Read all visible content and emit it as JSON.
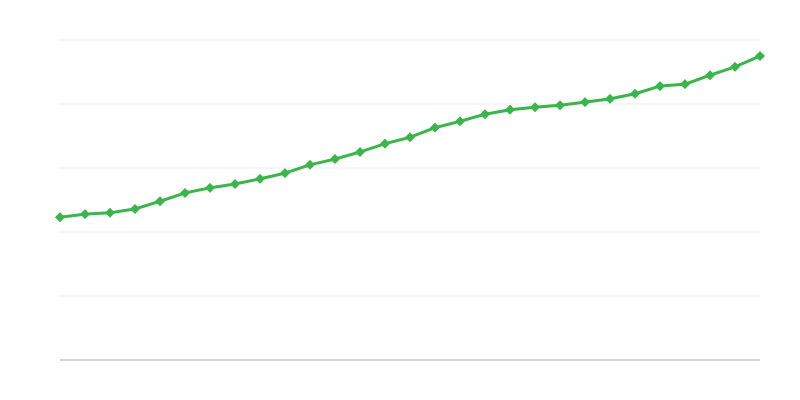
{
  "chart_data": {
    "type": "line",
    "title": "",
    "xlabel": "",
    "ylabel": "",
    "x": [
      0,
      1,
      2,
      3,
      4,
      5,
      6,
      7,
      8,
      9,
      10,
      11,
      12,
      13,
      14,
      15,
      16,
      17,
      18,
      19,
      20,
      21,
      22,
      23,
      24,
      25,
      26,
      27,
      28
    ],
    "series": [
      {
        "values": [
          2.23,
          2.28,
          2.3,
          2.36,
          2.48,
          2.61,
          2.69,
          2.75,
          2.83,
          2.92,
          3.05,
          3.14,
          3.25,
          3.38,
          3.48,
          3.63,
          3.73,
          3.84,
          3.91,
          3.95,
          3.98,
          4.03,
          4.08,
          4.16,
          4.28,
          4.31,
          4.45,
          4.58,
          4.75
        ],
        "color": "#39b54a",
        "marker": "diamond"
      }
    ],
    "xlim": [
      0,
      28
    ],
    "ylim": [
      0,
      5
    ],
    "grid": true,
    "legend": "none",
    "colors": {
      "grid": "#ebebeb",
      "axis": "#aaaaaa"
    }
  }
}
